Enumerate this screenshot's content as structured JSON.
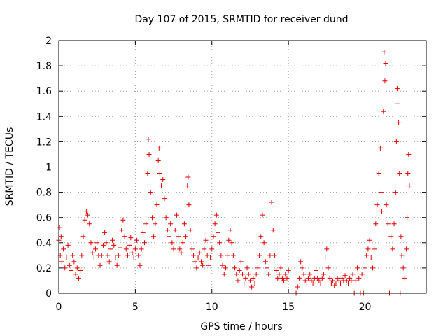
{
  "chart_data": {
    "type": "scatter",
    "title": "Day 107 of 2015, SRMTID for receiver dund",
    "xlabel": "GPS time / hours",
    "ylabel": "SRMTID / TECUs",
    "xlim": [
      0,
      24
    ],
    "ylim": [
      0,
      2
    ],
    "xticks": [
      0,
      5,
      10,
      15,
      20
    ],
    "xtick_labels": [
      "0",
      "5",
      "10",
      "15",
      "20"
    ],
    "yticks": [
      0,
      0.2,
      0.4,
      0.6,
      0.8,
      1,
      1.2,
      1.4,
      1.6,
      1.8,
      2
    ],
    "ytick_labels": [
      "0",
      "0.2",
      "0.4",
      "0.6",
      "0.8",
      "1",
      "1.2",
      "1.4",
      "1.6",
      "1.8",
      "2"
    ],
    "grid": true,
    "marker": "+",
    "color": "#e00000",
    "series": [
      {
        "name": "SRMTID",
        "points": [
          [
            0.0,
            0.42
          ],
          [
            0.05,
            0.52
          ],
          [
            0.1,
            0.3
          ],
          [
            0.15,
            0.45
          ],
          [
            0.2,
            0.25
          ],
          [
            0.3,
            0.35
          ],
          [
            0.4,
            0.2
          ],
          [
            0.5,
            0.28
          ],
          [
            0.6,
            0.38
          ],
          [
            0.7,
            0.22
          ],
          [
            0.8,
            0.18
          ],
          [
            0.9,
            0.3
          ],
          [
            1.0,
            0.25
          ],
          [
            1.1,
            0.15
          ],
          [
            1.2,
            0.2
          ],
          [
            1.3,
            0.12
          ],
          [
            1.4,
            0.18
          ],
          [
            1.5,
            0.3
          ],
          [
            1.6,
            0.45
          ],
          [
            1.7,
            0.58
          ],
          [
            1.8,
            0.65
          ],
          [
            1.9,
            0.62
          ],
          [
            2.0,
            0.55
          ],
          [
            2.1,
            0.4
          ],
          [
            2.2,
            0.32
          ],
          [
            2.3,
            0.28
          ],
          [
            2.4,
            0.35
          ],
          [
            2.5,
            0.4
          ],
          [
            2.6,
            0.3
          ],
          [
            2.7,
            0.22
          ],
          [
            2.8,
            0.3
          ],
          [
            2.9,
            0.38
          ],
          [
            3.0,
            0.48
          ],
          [
            3.1,
            0.4
          ],
          [
            3.2,
            0.3
          ],
          [
            3.3,
            0.25
          ],
          [
            3.4,
            0.35
          ],
          [
            3.5,
            0.42
          ],
          [
            3.6,
            0.38
          ],
          [
            3.7,
            0.28
          ],
          [
            3.8,
            0.22
          ],
          [
            3.9,
            0.3
          ],
          [
            4.0,
            0.36
          ],
          [
            4.1,
            0.5
          ],
          [
            4.2,
            0.58
          ],
          [
            4.3,
            0.45
          ],
          [
            4.4,
            0.35
          ],
          [
            4.5,
            0.3
          ],
          [
            4.6,
            0.38
          ],
          [
            4.7,
            0.44
          ],
          [
            4.8,
            0.32
          ],
          [
            4.9,
            0.28
          ],
          [
            5.0,
            0.35
          ],
          [
            5.1,
            0.42
          ],
          [
            5.2,
            0.3
          ],
          [
            5.3,
            0.22
          ],
          [
            5.4,
            0.35
          ],
          [
            5.5,
            0.48
          ],
          [
            5.6,
            0.4
          ],
          [
            5.7,
            0.55
          ],
          [
            5.8,
            0.95
          ],
          [
            5.85,
            1.22
          ],
          [
            5.9,
            1.1
          ],
          [
            6.0,
            0.8
          ],
          [
            6.1,
            0.6
          ],
          [
            6.2,
            0.45
          ],
          [
            6.3,
            0.55
          ],
          [
            6.4,
            0.7
          ],
          [
            6.5,
            1.05
          ],
          [
            6.55,
            1.15
          ],
          [
            6.6,
            0.95
          ],
          [
            6.7,
            0.85
          ],
          [
            6.8,
            0.9
          ],
          [
            6.9,
            0.75
          ],
          [
            7.0,
            0.6
          ],
          [
            7.1,
            0.5
          ],
          [
            7.2,
            0.45
          ],
          [
            7.3,
            0.55
          ],
          [
            7.4,
            0.4
          ],
          [
            7.5,
            0.35
          ],
          [
            7.6,
            0.5
          ],
          [
            7.7,
            0.62
          ],
          [
            7.8,
            0.45
          ],
          [
            7.9,
            0.35
          ],
          [
            8.0,
            0.32
          ],
          [
            8.1,
            0.4
          ],
          [
            8.2,
            0.55
          ],
          [
            8.3,
            0.45
          ],
          [
            8.4,
            0.85
          ],
          [
            8.45,
            0.92
          ],
          [
            8.5,
            0.7
          ],
          [
            8.6,
            0.5
          ],
          [
            8.7,
            0.35
          ],
          [
            8.8,
            0.3
          ],
          [
            8.9,
            0.25
          ],
          [
            9.0,
            0.2
          ],
          [
            9.1,
            0.28
          ],
          [
            9.2,
            0.32
          ],
          [
            9.3,
            0.25
          ],
          [
            9.4,
            0.22
          ],
          [
            9.5,
            0.35
          ],
          [
            9.6,
            0.42
          ],
          [
            9.7,
            0.3
          ],
          [
            9.8,
            0.22
          ],
          [
            9.9,
            0.28
          ],
          [
            10.0,
            0.35
          ],
          [
            10.1,
            0.45
          ],
          [
            10.2,
            0.55
          ],
          [
            10.3,
            0.62
          ],
          [
            10.4,
            0.48
          ],
          [
            10.5,
            0.4
          ],
          [
            10.6,
            0.3
          ],
          [
            10.7,
            0.22
          ],
          [
            10.8,
            0.15
          ],
          [
            10.9,
            0.2
          ],
          [
            11.0,
            0.3
          ],
          [
            11.1,
            0.42
          ],
          [
            11.2,
            0.5
          ],
          [
            11.3,
            0.4
          ],
          [
            11.4,
            0.3
          ],
          [
            11.5,
            0.2
          ],
          [
            11.6,
            0.15
          ],
          [
            11.7,
            0.1
          ],
          [
            11.8,
            0.18
          ],
          [
            11.9,
            0.25
          ],
          [
            12.0,
            0.15
          ],
          [
            12.1,
            0.08
          ],
          [
            12.2,
            0.12
          ],
          [
            12.3,
            0.2
          ],
          [
            12.4,
            0.15
          ],
          [
            12.5,
            0.1
          ],
          [
            12.6,
            0.05
          ],
          [
            12.7,
            0.12
          ],
          [
            12.8,
            0.08
          ],
          [
            12.9,
            0.15
          ],
          [
            13.0,
            0.2
          ],
          [
            13.1,
            0.3
          ],
          [
            13.2,
            0.45
          ],
          [
            13.3,
            0.62
          ],
          [
            13.4,
            0.4
          ],
          [
            13.5,
            0.25
          ],
          [
            13.6,
            0.2
          ],
          [
            13.7,
            0.15
          ],
          [
            13.8,
            0.3
          ],
          [
            13.9,
            0.72
          ],
          [
            14.0,
            0.5
          ],
          [
            14.1,
            0.3
          ],
          [
            14.2,
            0.18
          ],
          [
            14.3,
            0.12
          ],
          [
            14.4,
            0.15
          ],
          [
            14.5,
            0.2
          ],
          [
            14.6,
            0.12
          ],
          [
            14.7,
            0.1
          ],
          [
            14.8,
            0.15
          ],
          [
            14.9,
            0.12
          ],
          [
            15.0,
            0.18
          ],
          [
            15.5,
            0.0
          ],
          [
            15.6,
            0.05
          ],
          [
            15.7,
            0.12
          ],
          [
            15.8,
            0.25
          ],
          [
            15.9,
            0.2
          ],
          [
            16.0,
            0.15
          ],
          [
            16.1,
            0.1
          ],
          [
            16.2,
            0.08
          ],
          [
            16.3,
            0.12
          ],
          [
            16.4,
            0.15
          ],
          [
            16.5,
            0.1
          ],
          [
            16.6,
            0.08
          ],
          [
            16.7,
            0.12
          ],
          [
            16.8,
            0.18
          ],
          [
            16.9,
            0.12
          ],
          [
            17.0,
            0.1
          ],
          [
            17.1,
            0.08
          ],
          [
            17.2,
            0.12
          ],
          [
            17.3,
            0.15
          ],
          [
            17.4,
            0.28
          ],
          [
            17.5,
            0.35
          ],
          [
            17.6,
            0.2
          ],
          [
            17.7,
            0.12
          ],
          [
            17.8,
            0.08
          ],
          [
            17.9,
            0.1
          ],
          [
            18.0,
            0.06
          ],
          [
            18.1,
            0.08
          ],
          [
            18.2,
            0.12
          ],
          [
            18.3,
            0.1
          ],
          [
            18.4,
            0.08
          ],
          [
            18.5,
            0.12
          ],
          [
            18.6,
            0.1
          ],
          [
            18.7,
            0.14
          ],
          [
            18.8,
            0.1
          ],
          [
            18.9,
            0.08
          ],
          [
            19.0,
            0.12
          ],
          [
            19.1,
            0.1
          ],
          [
            19.2,
            0.15
          ],
          [
            19.3,
            0.0
          ],
          [
            19.4,
            0.1
          ],
          [
            19.5,
            0.2
          ],
          [
            19.6,
            0.12
          ],
          [
            19.7,
            0.0
          ],
          [
            19.8,
            0.15
          ],
          [
            19.9,
            0.0
          ],
          [
            20.0,
            0.2
          ],
          [
            20.1,
            0.3
          ],
          [
            20.2,
            0.35
          ],
          [
            20.3,
            0.42
          ],
          [
            20.4,
            0.28
          ],
          [
            20.5,
            0.2
          ],
          [
            20.6,
            0.35
          ],
          [
            20.7,
            0.55
          ],
          [
            20.8,
            0.7
          ],
          [
            20.9,
            0.95
          ],
          [
            21.0,
            1.15
          ],
          [
            21.05,
            0.8
          ],
          [
            21.1,
            0.65
          ],
          [
            21.2,
            1.44
          ],
          [
            21.25,
            1.91
          ],
          [
            21.3,
            1.68
          ],
          [
            21.35,
            1.82
          ],
          [
            21.4,
            0.7
          ],
          [
            21.5,
            0.55
          ],
          [
            21.6,
            0.0
          ],
          [
            21.7,
            0.45
          ],
          [
            21.8,
            0.35
          ],
          [
            21.9,
            0.55
          ],
          [
            22.0,
            0.8
          ],
          [
            22.05,
            1.2
          ],
          [
            22.1,
            1.62
          ],
          [
            22.15,
            1.5
          ],
          [
            22.2,
            1.35
          ],
          [
            22.25,
            0.95
          ],
          [
            22.3,
            0.0
          ],
          [
            22.35,
            0.45
          ],
          [
            22.4,
            0.3
          ],
          [
            22.5,
            0.2
          ],
          [
            22.6,
            0.12
          ],
          [
            22.7,
            0.35
          ],
          [
            22.75,
            0.6
          ],
          [
            22.8,
            0.95
          ],
          [
            22.85,
            1.1
          ],
          [
            22.9,
            0.85
          ]
        ]
      }
    ]
  }
}
